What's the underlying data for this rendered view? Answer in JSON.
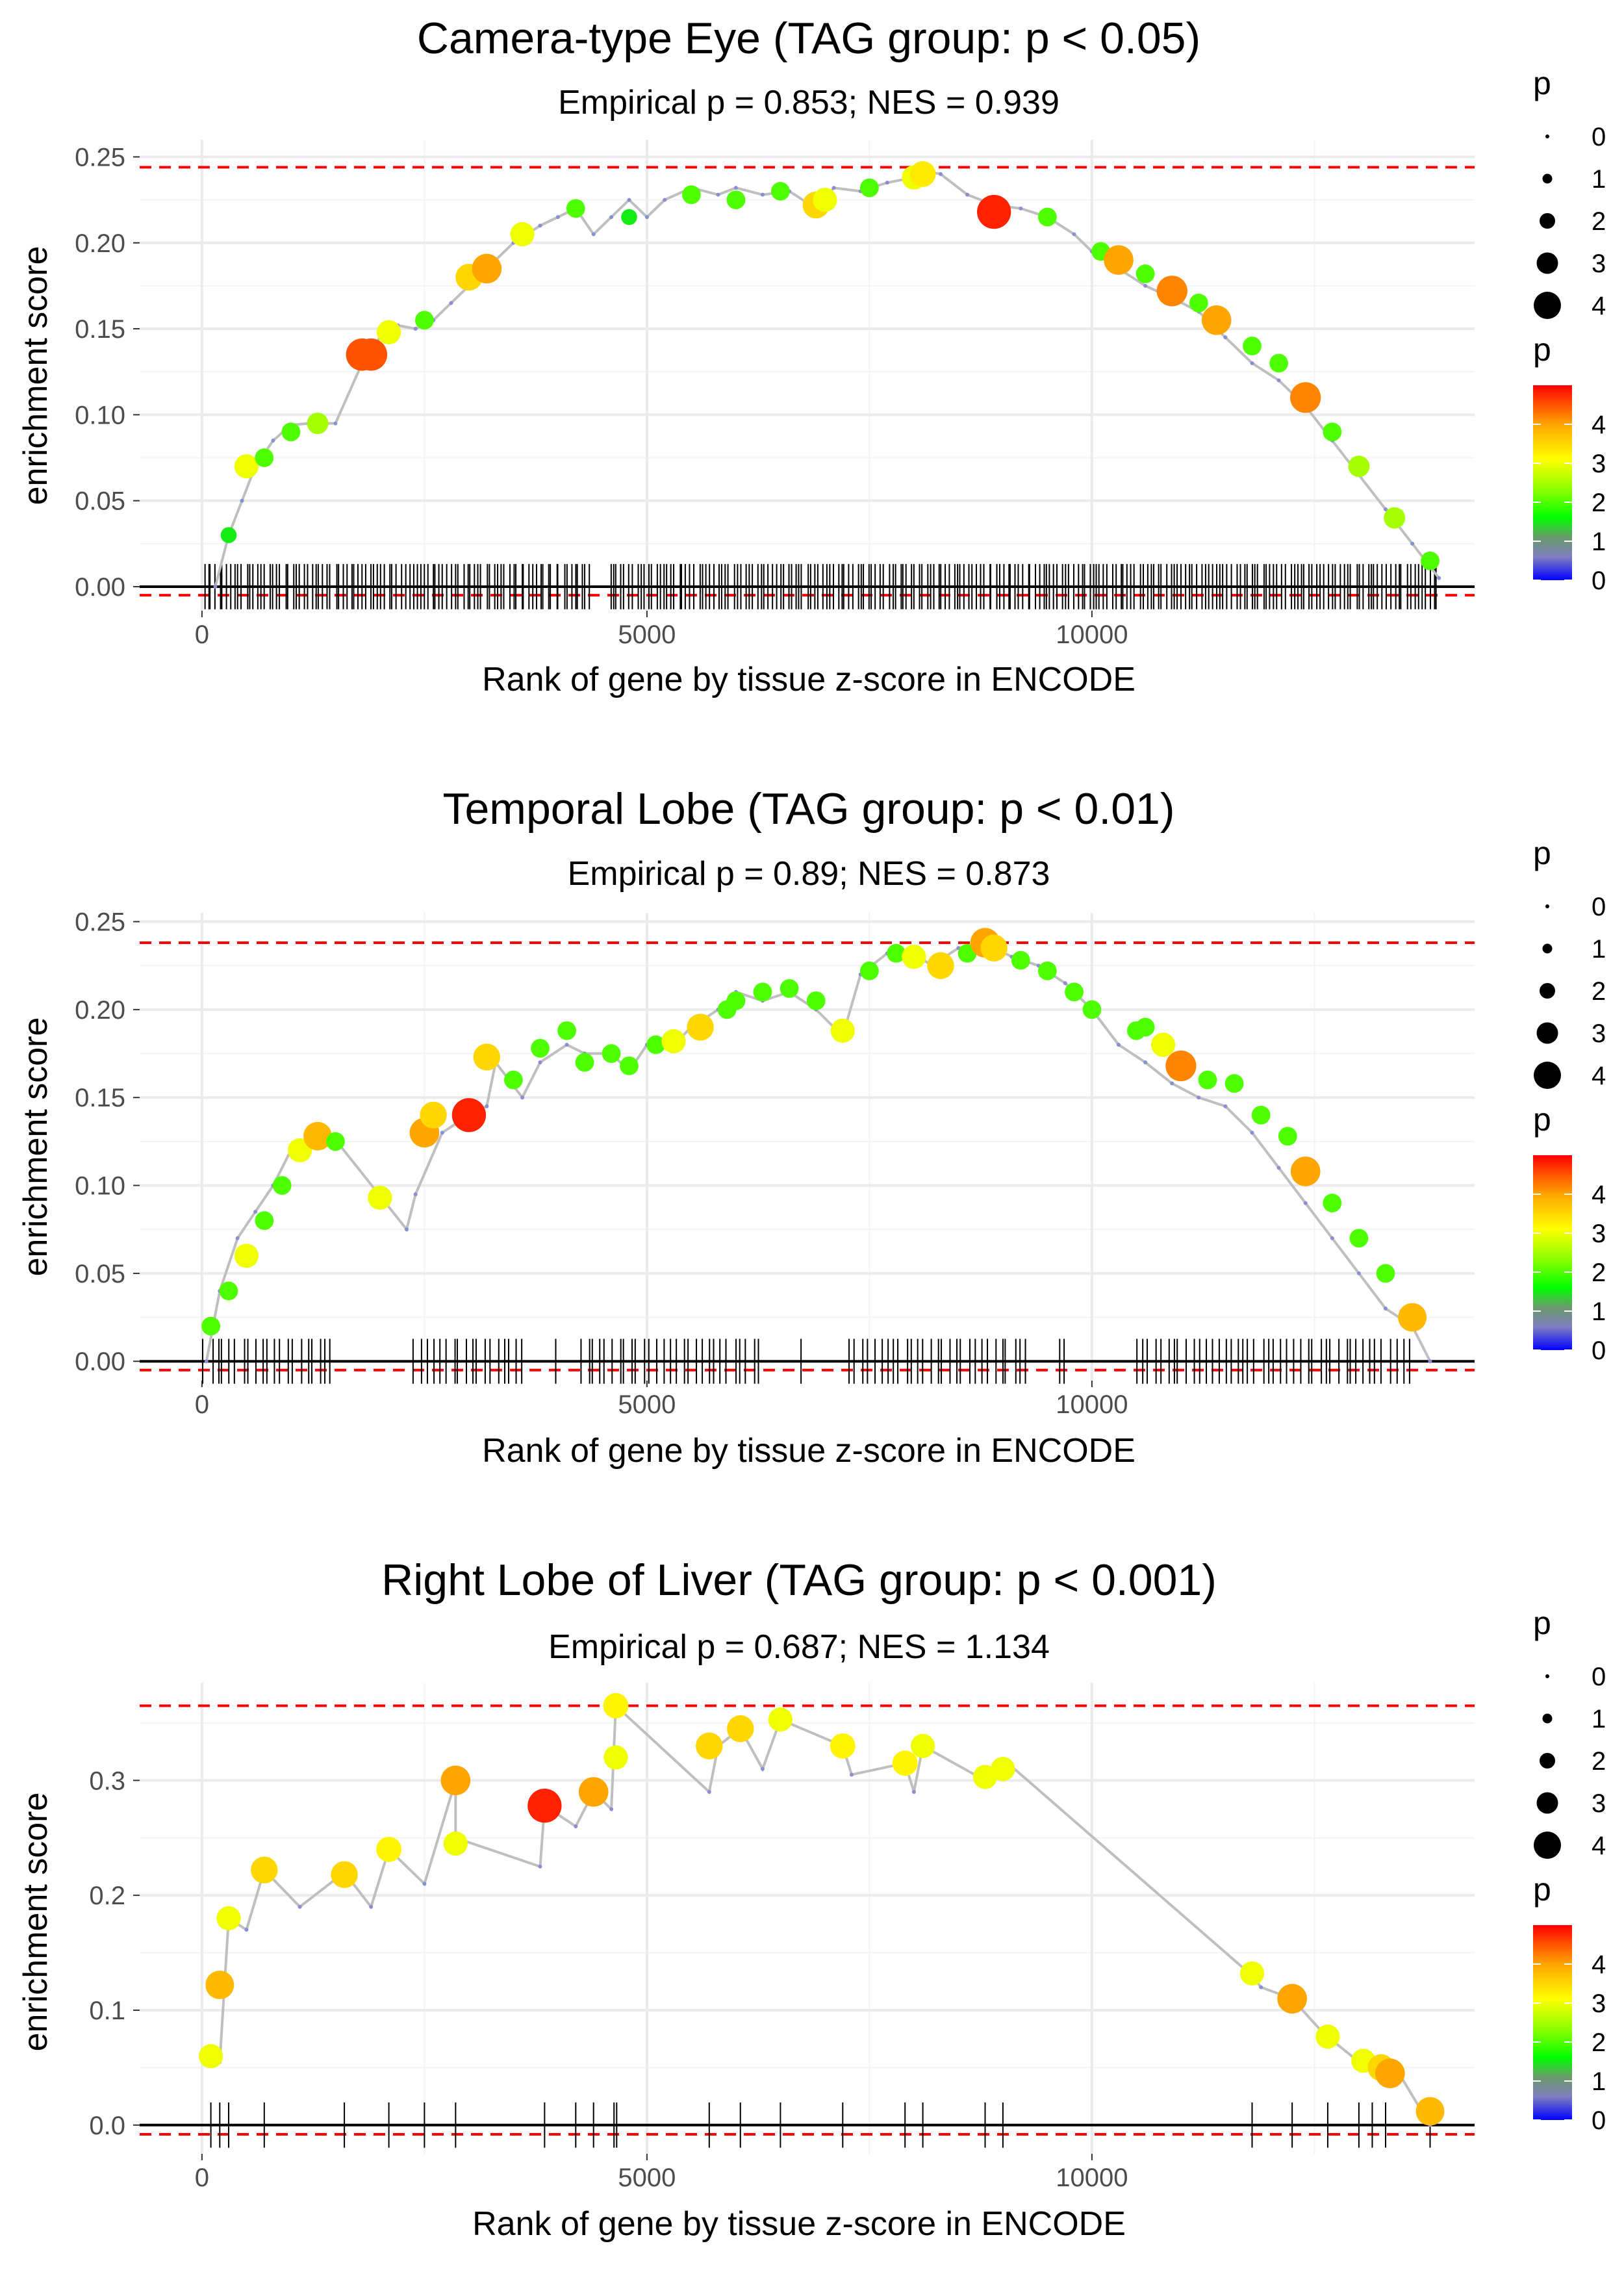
{
  "chart_data": [
    {
      "type": "line",
      "title": "Camera-type Eye (TAG group: p < 0.05)",
      "subtitle": "Empirical p = 0.853; NES = 0.939",
      "xlabel": "Rank of gene by tissue z-score in ENCODE",
      "ylabel": "enrichment score",
      "xlim": [
        -700,
        14300
      ],
      "ylim": [
        -0.014,
        0.26
      ],
      "xticks": [
        0,
        5000,
        10000
      ],
      "yticks": [
        0.0,
        0.05,
        0.1,
        0.15,
        0.2,
        0.25
      ],
      "ytick_labels": [
        "0.00",
        "0.05",
        "0.10",
        "0.15",
        "0.20",
        "0.25"
      ],
      "max_es": 0.244,
      "min_es": -0.005,
      "series": [
        {
          "name": "running enrichment score",
          "x": [
            150,
            300,
            450,
            600,
            800,
            1000,
            1200,
            1500,
            1800,
            2000,
            2200,
            2400,
            2600,
            2800,
            3000,
            3200,
            3500,
            3800,
            4000,
            4200,
            4400,
            4600,
            4800,
            5000,
            5200,
            5500,
            5800,
            6000,
            6300,
            6600,
            6900,
            7100,
            7400,
            7700,
            8000,
            8100,
            8300,
            8600,
            8900,
            9200,
            9500,
            9800,
            10000,
            10300,
            10600,
            10900,
            11200,
            11500,
            11800,
            12100,
            12400,
            12700,
            13000,
            13300,
            13600,
            13900
          ],
          "y": [
            0.0,
            0.03,
            0.05,
            0.07,
            0.085,
            0.094,
            0.095,
            0.095,
            0.13,
            0.145,
            0.152,
            0.15,
            0.155,
            0.165,
            0.175,
            0.185,
            0.2,
            0.21,
            0.215,
            0.22,
            0.205,
            0.215,
            0.225,
            0.215,
            0.225,
            0.232,
            0.228,
            0.232,
            0.228,
            0.23,
            0.22,
            0.232,
            0.23,
            0.235,
            0.238,
            0.242,
            0.24,
            0.228,
            0.222,
            0.22,
            0.215,
            0.205,
            0.195,
            0.185,
            0.175,
            0.168,
            0.16,
            0.145,
            0.13,
            0.12,
            0.105,
            0.085,
            0.065,
            0.045,
            0.025,
            0.005
          ]
        }
      ],
      "points": {
        "x": [
          300,
          500,
          700,
          1000,
          1300,
          1800,
          1900,
          2100,
          2500,
          3000,
          3200,
          3600,
          4200,
          4800,
          5500,
          6000,
          6500,
          6900,
          7000,
          7500,
          8000,
          8100,
          8900,
          9500,
          10100,
          10300,
          10600,
          10900,
          11200,
          11400,
          11800,
          12100,
          12400,
          12700,
          13000,
          13400,
          13800
        ],
        "y": [
          0.03,
          0.07,
          0.075,
          0.09,
          0.095,
          0.135,
          0.135,
          0.148,
          0.155,
          0.18,
          0.185,
          0.205,
          0.22,
          0.215,
          0.228,
          0.225,
          0.23,
          0.222,
          0.225,
          0.232,
          0.238,
          0.24,
          0.218,
          0.215,
          0.195,
          0.19,
          0.182,
          0.172,
          0.165,
          0.155,
          0.14,
          0.13,
          0.11,
          0.09,
          0.07,
          0.04,
          0.015
        ],
        "p": [
          1.5,
          3.0,
          2.0,
          2.0,
          2.5,
          4.5,
          4.5,
          3.0,
          2.0,
          3.5,
          4.0,
          3.0,
          2.0,
          1.5,
          2.0,
          2.0,
          2.0,
          3.5,
          3.0,
          2.0,
          3.0,
          3.3,
          4.8,
          2.0,
          2.0,
          4.0,
          2.0,
          4.2,
          2.0,
          4.0,
          2.0,
          2.0,
          4.2,
          2.0,
          2.5,
          2.5,
          2.0
        ]
      },
      "rug": {
        "from": 0,
        "to": 13900,
        "count": 320,
        "gaps": [
          [
            4400,
            4580
          ]
        ]
      }
    },
    {
      "type": "line",
      "title": "Temporal Lobe (TAG group: p < 0.01)",
      "subtitle": "Empirical p = 0.89; NES = 0.873",
      "xlabel": "Rank of gene by tissue z-score in ENCODE",
      "ylabel": "enrichment score",
      "xlim": [
        -700,
        14300
      ],
      "ylim": [
        -0.011,
        0.255
      ],
      "xticks": [
        0,
        5000,
        10000
      ],
      "yticks": [
        0.0,
        0.05,
        0.1,
        0.15,
        0.2,
        0.25
      ],
      "ytick_labels": [
        "0.00",
        "0.05",
        "0.10",
        "0.15",
        "0.20",
        "0.25"
      ],
      "max_es": 0.238,
      "min_es": -0.005,
      "series": [
        {
          "name": "running enrichment score",
          "x": [
            50,
            200,
            400,
            600,
            800,
            1000,
            1300,
            1500,
            2300,
            2400,
            2700,
            3000,
            3200,
            3300,
            3600,
            3800,
            4100,
            4300,
            4600,
            4800,
            5000,
            5300,
            5500,
            5800,
            6000,
            6300,
            6600,
            6900,
            7200,
            7400,
            7700,
            8000,
            8200,
            8500,
            8800,
            9100,
            9400,
            9700,
            10000,
            10300,
            10600,
            10900,
            11200,
            11500,
            11800,
            12100,
            12400,
            12700,
            13000,
            13300,
            13600,
            13800
          ],
          "y": [
            0.0,
            0.04,
            0.07,
            0.085,
            0.1,
            0.12,
            0.125,
            0.126,
            0.075,
            0.095,
            0.13,
            0.14,
            0.145,
            0.17,
            0.15,
            0.17,
            0.18,
            0.175,
            0.175,
            0.165,
            0.18,
            0.18,
            0.19,
            0.2,
            0.21,
            0.205,
            0.21,
            0.2,
            0.185,
            0.22,
            0.232,
            0.232,
            0.225,
            0.235,
            0.238,
            0.23,
            0.225,
            0.215,
            0.2,
            0.18,
            0.17,
            0.158,
            0.15,
            0.145,
            0.13,
            0.11,
            0.09,
            0.07,
            0.05,
            0.03,
            0.02,
            0.0
          ]
        }
      ],
      "points": {
        "x": [
          100,
          300,
          500,
          700,
          900,
          1100,
          1300,
          1500,
          2000,
          2500,
          2600,
          3000,
          3200,
          3500,
          3800,
          4100,
          4300,
          4600,
          4800,
          5100,
          5300,
          5600,
          5900,
          6000,
          6300,
          6600,
          6900,
          7200,
          7500,
          7800,
          8000,
          8300,
          8600,
          8800,
          8900,
          9200,
          9500,
          9800,
          10000,
          10500,
          10600,
          10800,
          11000,
          11300,
          11600,
          11900,
          12200,
          12400,
          12700,
          13000,
          13300,
          13600
        ],
        "y": [
          0.02,
          0.04,
          0.06,
          0.08,
          0.1,
          0.12,
          0.128,
          0.125,
          0.093,
          0.13,
          0.14,
          0.14,
          0.173,
          0.16,
          0.178,
          0.188,
          0.17,
          0.175,
          0.168,
          0.18,
          0.182,
          0.19,
          0.2,
          0.205,
          0.21,
          0.212,
          0.205,
          0.188,
          0.222,
          0.232,
          0.23,
          0.225,
          0.232,
          0.238,
          0.235,
          0.228,
          0.222,
          0.21,
          0.2,
          0.188,
          0.19,
          0.18,
          0.168,
          0.16,
          0.158,
          0.14,
          0.128,
          0.108,
          0.09,
          0.07,
          0.05,
          0.025
        ],
        "p": [
          2.0,
          2.0,
          3.0,
          2.0,
          2.0,
          3.0,
          3.8,
          2.0,
          3.0,
          4.0,
          3.5,
          4.8,
          3.5,
          2.0,
          2.0,
          2.0,
          2.0,
          2.0,
          2.0,
          2.0,
          3.0,
          3.5,
          2.0,
          2.0,
          2.0,
          2.0,
          2.0,
          3.0,
          2.0,
          2.0,
          3.0,
          3.5,
          2.0,
          4.0,
          3.5,
          2.0,
          2.0,
          2.0,
          2.0,
          2.0,
          2.0,
          3.0,
          4.2,
          2.0,
          2.0,
          2.0,
          2.0,
          4.0,
          2.0,
          2.0,
          2.0,
          3.8
        ],
        "sizes_note": "point size scales with p"
      },
      "rug": {
        "from": 0,
        "to": 13600,
        "count": 190,
        "gaps": [
          [
            1500,
            2300
          ],
          [
            3600,
            4200
          ],
          [
            6300,
            7200
          ],
          [
            9300,
            10500
          ]
        ]
      }
    },
    {
      "type": "line",
      "title": "Right Lobe of Liver (TAG group: p < 0.001)",
      "subtitle": "Empirical p = 0.687; NES = 1.134",
      "xlabel": "Rank of gene by tissue z-score in ENCODE",
      "ylabel": "enrichment score",
      "xlim": [
        -700,
        14300
      ],
      "ylim": [
        -0.025,
        0.385
      ],
      "xticks": [
        0,
        5000,
        10000
      ],
      "yticks": [
        0.0,
        0.1,
        0.2,
        0.3
      ],
      "ytick_labels": [
        "0.0",
        "0.1",
        "0.2",
        "0.3"
      ],
      "max_es": 0.365,
      "min_es": -0.008,
      "series": [
        {
          "name": "running enrichment score",
          "x": [
            100,
            200,
            300,
            500,
            700,
            1100,
            1600,
            1900,
            2100,
            2500,
            2850,
            2850,
            3800,
            3850,
            4200,
            4400,
            4600,
            4650,
            5700,
            5800,
            6050,
            6300,
            6500,
            7200,
            7300,
            7900,
            8000,
            8100,
            8800,
            8900,
            9100,
            11800,
            11900,
            12250,
            12600,
            13000,
            13250,
            13450,
            13800
          ],
          "y": [
            0.06,
            0.055,
            0.18,
            0.17,
            0.222,
            0.19,
            0.22,
            0.19,
            0.24,
            0.21,
            0.3,
            0.25,
            0.225,
            0.278,
            0.26,
            0.29,
            0.275,
            0.365,
            0.29,
            0.33,
            0.345,
            0.31,
            0.353,
            0.33,
            0.305,
            0.315,
            0.29,
            0.33,
            0.3,
            0.3,
            0.312,
            0.13,
            0.12,
            0.11,
            0.08,
            0.055,
            0.05,
            0.045,
            0.0
          ]
        }
      ],
      "points": {
        "x": [
          100,
          200,
          300,
          700,
          1600,
          2100,
          2850,
          2850,
          3850,
          4400,
          4650,
          4650,
          5700,
          6050,
          6500,
          7200,
          7900,
          8100,
          8800,
          9000,
          11800,
          12250,
          12650,
          13050,
          13250,
          13350,
          13800
        ],
        "y": [
          0.06,
          0.122,
          0.18,
          0.222,
          0.218,
          0.24,
          0.3,
          0.245,
          0.278,
          0.29,
          0.32,
          0.365,
          0.33,
          0.345,
          0.353,
          0.33,
          0.315,
          0.33,
          0.303,
          0.31,
          0.132,
          0.11,
          0.077,
          0.056,
          0.05,
          0.045,
          0.012
        ],
        "p": [
          3.0,
          3.8,
          3.0,
          3.5,
          3.5,
          3.2,
          4.0,
          3.0,
          4.8,
          4.0,
          3.0,
          3.2,
          3.5,
          3.5,
          3.0,
          3.2,
          3.2,
          3.0,
          3.0,
          3.0,
          3.0,
          4.0,
          3.0,
          3.0,
          3.5,
          4.0,
          3.8
        ]
      },
      "rug": {
        "explicit": [
          100,
          200,
          300,
          700,
          1600,
          2100,
          2500,
          2850,
          3850,
          4200,
          4400,
          4630,
          4660,
          5700,
          6050,
          6500,
          7200,
          7900,
          8100,
          8800,
          9000,
          11800,
          12250,
          12650,
          13000,
          13150,
          13300,
          13800
        ]
      }
    }
  ],
  "legend": {
    "size_title": "p",
    "size_labels": [
      "0",
      "1",
      "2",
      "3",
      "4"
    ],
    "color_title": "p",
    "color_labels": [
      "0",
      "1",
      "2",
      "3",
      "4"
    ],
    "colorbar_min": 0,
    "colorbar_max": 5,
    "colorbar_stops": [
      "#0000ff",
      "#7f7fbf",
      "#6a9a6a",
      "#00ff00",
      "#7fff00",
      "#ffff00",
      "#ffa500",
      "#ff0000"
    ]
  },
  "colors": {
    "line": "#bfbfbf",
    "rug": "#000000",
    "zero_line": "#000000",
    "dashed": "#ff0000",
    "grid": "#ebebeb",
    "dot_small": "#8a8fd1"
  }
}
